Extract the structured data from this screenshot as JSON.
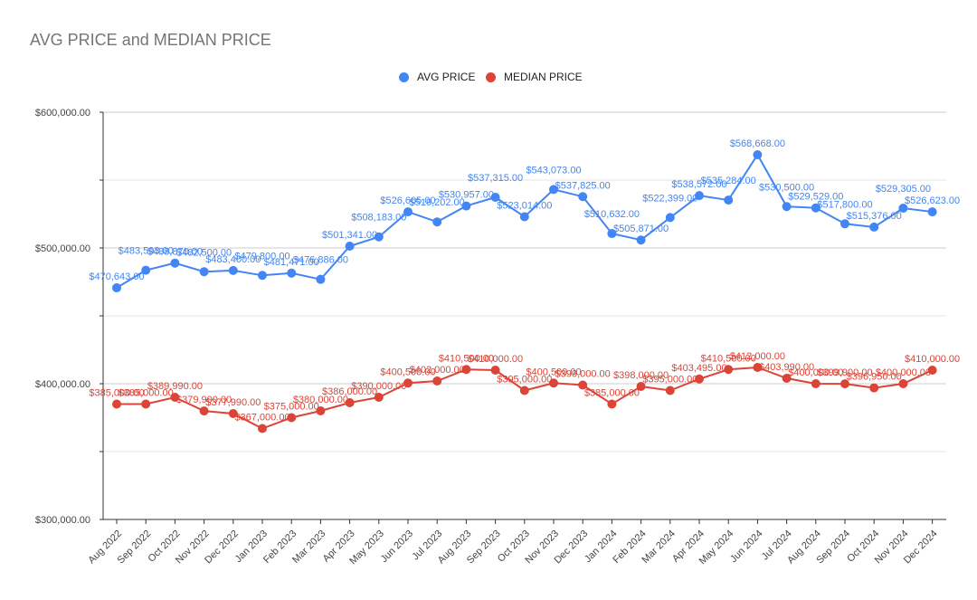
{
  "chart_data": {
    "type": "line",
    "title": "AVG PRICE and MEDIAN PRICE",
    "xlabel": "",
    "ylabel": "",
    "ylim": [
      300000,
      600000
    ],
    "y_ticks": [
      "$300,000.00",
      "$400,000.00",
      "$500,000.00",
      "$600,000.00"
    ],
    "y_tick_values": [
      300000,
      400000,
      500000,
      600000
    ],
    "grid": true,
    "legend_position": "top-center",
    "categories": [
      "Aug 2022",
      "Sep 2022",
      "Oct 2022",
      "Nov 2022",
      "Dec 2022",
      "Jan 2023",
      "Feb 2023",
      "Mar 2023",
      "Apr 2023",
      "May 2023",
      "Jun 2023",
      "Jul 2023",
      "Aug 2023",
      "Sep 2023",
      "Oct 2023",
      "Nov 2023",
      "Dec 2023",
      "Jan 2024",
      "Feb 2024",
      "Mar 2024",
      "Apr 2024",
      "May 2024",
      "Jun 2024",
      "Jul 2024",
      "Aug 2024",
      "Sep 2024",
      "Oct 2024",
      "Nov 2024",
      "Dec 2024"
    ],
    "series": [
      {
        "name": "AVG PRICE",
        "color": "#4285f4",
        "values": [
          470643,
          483593,
          488870,
          482500,
          483400,
          479800,
          481471,
          476886,
          501341,
          508183,
          526605,
          519202,
          530957,
          537315,
          523014,
          543073,
          537825,
          510632,
          505871,
          522399,
          538572,
          535284,
          568668,
          530500,
          529529,
          517800,
          515376,
          529305,
          526623
        ],
        "labels": [
          "$470,643.00",
          "$483,593.00",
          "$488,870.00",
          "$482,500.00",
          "$483,400.00",
          "$479,800.00",
          "$481,471.00",
          "$476,886.00",
          "$501,341.00",
          "$508,183.00",
          "$526,605.00",
          "$519,202.00",
          "$530,957.00",
          "$537,315.00",
          "$523,014.00",
          "$543,073.00",
          "$537,825.00",
          "$510,632.00",
          "$505,871.00",
          "$522,399.00",
          "$538,572.00",
          "$535,284.00",
          "$568,668.00",
          "$530,500.00",
          "$529,529.00",
          "$517,800.00",
          "$515,376.00",
          "$529,305.00",
          "$526,623.00"
        ]
      },
      {
        "name": "MEDIAN PRICE",
        "color": "#db4437",
        "values": [
          385000,
          385000,
          389990,
          379900,
          377990,
          367000,
          375000,
          380000,
          386000,
          390000,
          400500,
          402000,
          410500,
          410000,
          395000,
          400500,
          399000,
          385000,
          398000,
          395000,
          403495,
          410500,
          412000,
          403990,
          400000,
          399900,
          396950,
          400000,
          410000
        ],
        "labels": [
          "$385,000.00",
          "$385,000.00",
          "$389,990.00",
          "$379,900.00",
          "$377,990.00",
          "$367,000.00",
          "$375,000.00",
          "$380,000.00",
          "$386,000.00",
          "$390,000.00",
          "$400,500.00",
          "$402,000.00",
          "$410,500.00",
          "$410,000.00",
          "$395,000.00",
          "$400,500.00",
          "$399,000.00",
          "$385,000.00",
          "$398,000.00",
          "$395,000.00",
          "$403,495.00",
          "$410,500.00",
          "$412,000.00",
          "$403,990.00",
          "$400,000.00",
          "$399,900.00",
          "$396,950.00",
          "$400,000.00",
          "$410,000.00"
        ]
      }
    ]
  }
}
